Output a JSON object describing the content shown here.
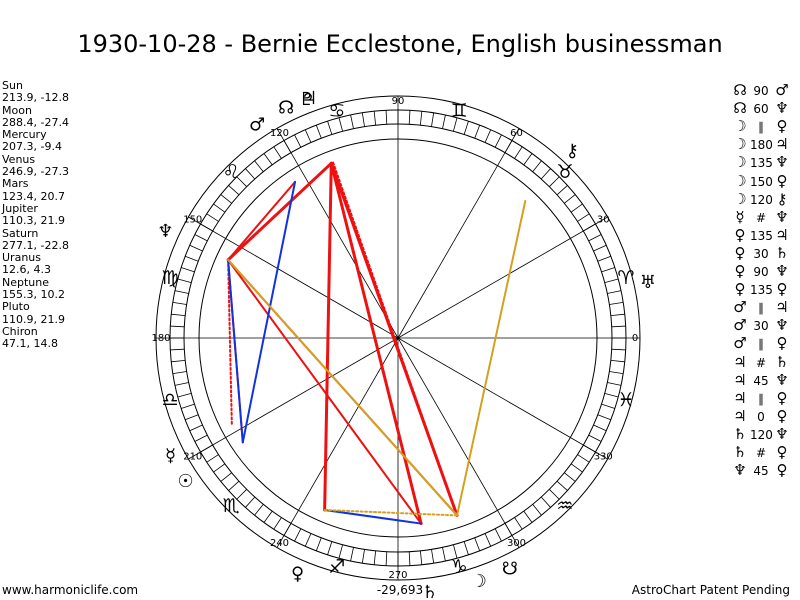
{
  "title": "1930-10-28 - Bernie Ecclestone, English businessman",
  "planets": [
    {
      "name": "Sun",
      "coords": "213.9, -12.8",
      "symbol": "☉"
    },
    {
      "name": "Moon",
      "coords": "288.4, -27.4",
      "symbol": "☽"
    },
    {
      "name": "Mercury",
      "coords": "207.3, -9.4",
      "symbol": "☿"
    },
    {
      "name": "Venus",
      "coords": "246.9, -27.3",
      "symbol": "♀"
    },
    {
      "name": "Mars",
      "coords": "123.4, 20.7",
      "symbol": "♂"
    },
    {
      "name": "Jupiter",
      "coords": "110.3, 21.9",
      "symbol": "♃"
    },
    {
      "name": "Saturn",
      "coords": "277.1, -22.8",
      "symbol": "♄"
    },
    {
      "name": "Uranus",
      "coords": "12.6, 4.3",
      "symbol": "♅"
    },
    {
      "name": "Neptune",
      "coords": "155.3, 10.2",
      "symbol": "♆"
    },
    {
      "name": "Pluto",
      "coords": "110.9, 21.9",
      "symbol": "♇"
    },
    {
      "name": "Chiron",
      "coords": "47.1, 14.8",
      "symbol": "⚷"
    }
  ],
  "aspects": [
    {
      "p1": "☊",
      "angle": "90",
      "p2": "♂"
    },
    {
      "p1": "☊",
      "angle": "60",
      "p2": "♆"
    },
    {
      "p1": "☽",
      "angle": "∥",
      "p2": "♀"
    },
    {
      "p1": "☽",
      "angle": "180",
      "p2": "♃"
    },
    {
      "p1": "☽",
      "angle": "135",
      "p2": "♆"
    },
    {
      "p1": "☽",
      "angle": "150",
      "p2": "♀"
    },
    {
      "p1": "☽",
      "angle": "120",
      "p2": "⚷"
    },
    {
      "p1": "☿",
      "angle": "#",
      "p2": "♆"
    },
    {
      "p1": "♀",
      "angle": "135",
      "p2": "♃"
    },
    {
      "p1": "♀",
      "angle": "30",
      "p2": "♄"
    },
    {
      "p1": "♀",
      "angle": "90",
      "p2": "♆"
    },
    {
      "p1": "♀",
      "angle": "135",
      "p2": "♀"
    },
    {
      "p1": "♂",
      "angle": "∥",
      "p2": "♃"
    },
    {
      "p1": "♂",
      "angle": "30",
      "p2": "♆"
    },
    {
      "p1": "♂",
      "angle": "∥",
      "p2": "♀"
    },
    {
      "p1": "♃",
      "angle": "#",
      "p2": "♄"
    },
    {
      "p1": "♃",
      "angle": "45",
      "p2": "♆"
    },
    {
      "p1": "♃",
      "angle": "∥",
      "p2": "♀"
    },
    {
      "p1": "♃",
      "angle": "0",
      "p2": "♀"
    },
    {
      "p1": "♄",
      "angle": "120",
      "p2": "♆"
    },
    {
      "p1": "♄",
      "angle": "#",
      "p2": "♀"
    },
    {
      "p1": "♆",
      "angle": "45",
      "p2": "♀"
    }
  ],
  "chart_data": {
    "type": "astrological_wheel",
    "degree_labels": [
      "0",
      "30",
      "60",
      "90",
      "120",
      "150",
      "180",
      "210",
      "240",
      "270",
      "300",
      "330"
    ],
    "signs": [
      {
        "symbol": "♈",
        "longitude": 15
      },
      {
        "symbol": "♉",
        "longitude": 45
      },
      {
        "symbol": "♊",
        "longitude": 75
      },
      {
        "symbol": "♋",
        "longitude": 105
      },
      {
        "symbol": "♌",
        "longitude": 135
      },
      {
        "symbol": "♍",
        "longitude": 165
      },
      {
        "symbol": "♎",
        "longitude": 195
      },
      {
        "symbol": "♏",
        "longitude": 225
      },
      {
        "symbol": "♐",
        "longitude": 255
      },
      {
        "symbol": "♑",
        "longitude": 285
      },
      {
        "symbol": "♒",
        "longitude": 315
      },
      {
        "symbol": "♓",
        "longitude": 345
      }
    ],
    "bodies": [
      {
        "symbol": "☉",
        "longitude": 213.9
      },
      {
        "symbol": "☽",
        "longitude": 288.4
      },
      {
        "symbol": "☿",
        "longitude": 207.3
      },
      {
        "symbol": "♀",
        "longitude": 246.9
      },
      {
        "symbol": "♂",
        "longitude": 123.4
      },
      {
        "symbol": "♃",
        "longitude": 110.3
      },
      {
        "symbol": "♄",
        "longitude": 277.1
      },
      {
        "symbol": "♅",
        "longitude": 12.6
      },
      {
        "symbol": "♆",
        "longitude": 155.3
      },
      {
        "symbol": "♇",
        "longitude": 110.9
      },
      {
        "symbol": "⚷",
        "longitude": 47.1
      },
      {
        "symbol": "☊",
        "longitude": 115.9
      },
      {
        "symbol": "☋",
        "longitude": 295.9
      }
    ],
    "aspect_lines": [
      {
        "from": 110.9,
        "to": 277.1,
        "color": "#ee1111",
        "style": "solid",
        "weight": 3
      },
      {
        "from": 110.9,
        "to": 288.4,
        "color": "#ee1111",
        "style": "solid",
        "weight": 3
      },
      {
        "from": 110.9,
        "to": 155.3,
        "color": "#ee1111",
        "style": "solid",
        "weight": 3
      },
      {
        "from": 110.9,
        "to": 246.9,
        "color": "#ee1111",
        "style": "solid",
        "weight": 3
      },
      {
        "from": 110.3,
        "to": 288.4,
        "color": "#ee1111",
        "style": "dotted",
        "weight": 2
      },
      {
        "from": 155.3,
        "to": 288.4,
        "color": "#ee1111",
        "style": "solid",
        "weight": 2
      },
      {
        "from": 155.3,
        "to": 277.1,
        "color": "#ee1111",
        "style": "solid",
        "weight": 2
      },
      {
        "from": 155.3,
        "to": 213.9,
        "color": "#ee1111",
        "style": "solid",
        "weight": 2
      },
      {
        "from": 155.3,
        "to": 207.3,
        "color": "#ee1111",
        "style": "dotted",
        "weight": 2
      },
      {
        "from": 123.4,
        "to": 155.3,
        "color": "#ee1111",
        "style": "solid",
        "weight": 2
      },
      {
        "from": 123.4,
        "to": 213.9,
        "color": "#1133dd",
        "style": "solid",
        "weight": 2
      },
      {
        "from": 155.3,
        "to": 213.9,
        "color": "#1133dd",
        "style": "solid",
        "weight": 2
      },
      {
        "from": 246.9,
        "to": 277.1,
        "color": "#1133dd",
        "style": "solid",
        "weight": 2
      },
      {
        "from": 155.3,
        "to": 288.4,
        "color": "#d4a020",
        "style": "solid",
        "weight": 2
      },
      {
        "from": 288.4,
        "to": 47.1,
        "color": "#d4a020",
        "style": "solid",
        "weight": 2
      },
      {
        "from": 246.9,
        "to": 288.4,
        "color": "#d4a020",
        "style": "dotted",
        "weight": 2
      }
    ]
  },
  "footer": {
    "left": "www.harmoniclife.com",
    "center": "-29,693",
    "right": "AstroChart Patent Pending"
  },
  "colors": {
    "red": "#ee1111",
    "blue": "#1133dd",
    "gold": "#d4a020",
    "ring": "#000000"
  }
}
